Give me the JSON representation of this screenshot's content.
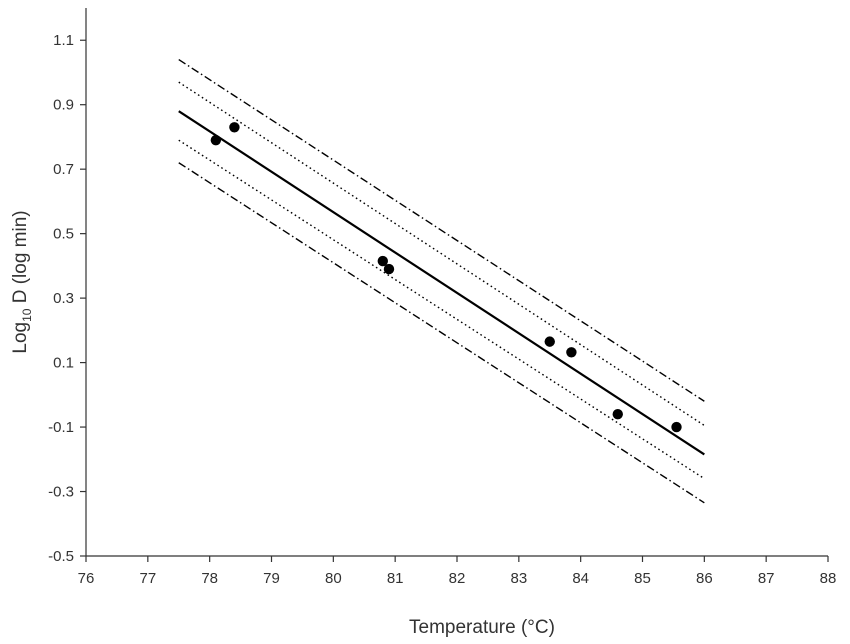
{
  "chart_data": {
    "type": "scatter",
    "title": "",
    "xlabel": "Temperature (°C)",
    "ylabel": {
      "prefix": "Log",
      "subscript": "10",
      "suffix": " D (log min)"
    },
    "xlim": [
      76,
      88
    ],
    "ylim": [
      -0.5,
      1.2
    ],
    "x_ticks": [
      76,
      77,
      78,
      79,
      80,
      81,
      82,
      83,
      84,
      85,
      86,
      87,
      88
    ],
    "y_ticks": [
      -0.5,
      -0.3,
      -0.1,
      0.1,
      0.3,
      0.5,
      0.7,
      0.9,
      1.1
    ],
    "y_tick_labels": [
      "-0.5",
      "-0.3",
      "-0.1",
      "0.1",
      "0.3",
      "0.5",
      "0.7",
      "0.9",
      "1.1"
    ],
    "grid": false,
    "points": [
      {
        "x": 78.1,
        "y": 0.79
      },
      {
        "x": 78.4,
        "y": 0.83
      },
      {
        "x": 80.8,
        "y": 0.415
      },
      {
        "x": 80.9,
        "y": 0.39
      },
      {
        "x": 83.5,
        "y": 0.165
      },
      {
        "x": 83.85,
        "y": 0.132
      },
      {
        "x": 84.6,
        "y": -0.06
      },
      {
        "x": 85.55,
        "y": -0.1
      }
    ],
    "lines": [
      {
        "role": "regression",
        "style": "solid",
        "x": [
          77.5,
          86.0
        ],
        "y": [
          0.88,
          -0.185
        ]
      },
      {
        "role": "confidence-upper",
        "style": "dotted",
        "x": [
          77.5,
          86.0
        ],
        "y": [
          0.97,
          -0.095
        ]
      },
      {
        "role": "confidence-lower",
        "style": "dotted",
        "x": [
          77.5,
          86.0
        ],
        "y": [
          0.79,
          -0.26
        ]
      },
      {
        "role": "prediction-upper",
        "style": "dash-dot",
        "x": [
          77.5,
          86.0
        ],
        "y": [
          1.04,
          -0.02
        ]
      },
      {
        "role": "prediction-lower",
        "style": "dash-dot",
        "x": [
          77.5,
          86.0
        ],
        "y": [
          0.72,
          -0.335
        ]
      }
    ],
    "colors": {
      "points": "#000000",
      "lines": "#000000",
      "axis": "#333333"
    }
  }
}
